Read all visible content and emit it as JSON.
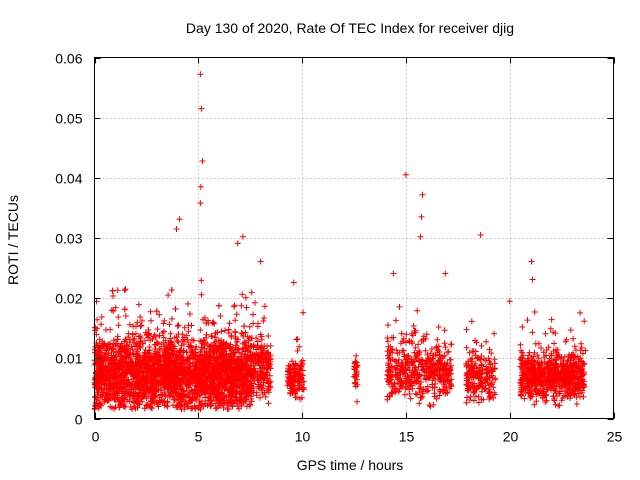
{
  "chart_data": {
    "type": "scatter",
    "title": "Day 130 of 2020, Rate Of TEC Index for receiver djig",
    "xlabel": "GPS time / hours",
    "ylabel": "ROTI / TECUs",
    "xlim": [
      0,
      25
    ],
    "ylim": [
      0,
      0.06
    ],
    "xticks": [
      0,
      5,
      10,
      15,
      20,
      25
    ],
    "yticks": [
      0,
      0.01,
      0.02,
      0.03,
      0.04,
      0.05,
      0.06
    ],
    "xtick_labels": [
      "0",
      "5",
      "10",
      "15",
      "20",
      "25"
    ],
    "ytick_labels": [
      "0",
      "0.01",
      "0.02",
      "0.03",
      "0.04",
      "0.05",
      "0.06"
    ],
    "grid": true,
    "marker": "+",
    "marker_color": "#ff0000",
    "notable_points": [
      {
        "x": 5.1,
        "y": 0.0572
      },
      {
        "x": 5.15,
        "y": 0.0515
      },
      {
        "x": 5.2,
        "y": 0.0428
      },
      {
        "x": 5.12,
        "y": 0.0385
      },
      {
        "x": 5.1,
        "y": 0.0358
      },
      {
        "x": 4.1,
        "y": 0.0331
      },
      {
        "x": 3.95,
        "y": 0.0315
      },
      {
        "x": 7.15,
        "y": 0.0302
      },
      {
        "x": 6.9,
        "y": 0.0291
      },
      {
        "x": 8.0,
        "y": 0.0261
      },
      {
        "x": 9.6,
        "y": 0.0226
      },
      {
        "x": 10.05,
        "y": 0.0176
      },
      {
        "x": 12.6,
        "y": 0.0104
      },
      {
        "x": 12.65,
        "y": 0.0028
      },
      {
        "x": 14.4,
        "y": 0.0241
      },
      {
        "x": 15.0,
        "y": 0.0405
      },
      {
        "x": 15.8,
        "y": 0.0372
      },
      {
        "x": 15.75,
        "y": 0.0335
      },
      {
        "x": 15.7,
        "y": 0.0302
      },
      {
        "x": 16.9,
        "y": 0.0241
      },
      {
        "x": 18.6,
        "y": 0.0305
      },
      {
        "x": 20.0,
        "y": 0.0195
      },
      {
        "x": 21.05,
        "y": 0.0261
      },
      {
        "x": 21.1,
        "y": 0.0231
      },
      {
        "x": 22.2,
        "y": 0.0142
      },
      {
        "x": 23.65,
        "y": 0.0113
      }
    ],
    "clusters": [
      {
        "x_range": [
          0.0,
          7.6
        ],
        "y_center": 0.0075,
        "y_spread": 0.0045,
        "y_min": 0.0015,
        "density": 45
      },
      {
        "x_range": [
          7.6,
          8.5
        ],
        "y_center": 0.0085,
        "y_spread": 0.0035,
        "y_min": 0.002,
        "density": 22
      },
      {
        "x_range": [
          9.3,
          10.1
        ],
        "y_center": 0.0068,
        "y_spread": 0.0025,
        "y_min": 0.002,
        "density": 18
      },
      {
        "x_range": [
          12.5,
          12.7
        ],
        "y_center": 0.0075,
        "y_spread": 0.0015,
        "y_min": 0.005,
        "density": 10
      },
      {
        "x_range": [
          14.1,
          17.2
        ],
        "y_center": 0.0078,
        "y_spread": 0.0035,
        "y_min": 0.002,
        "density": 16
      },
      {
        "x_range": [
          17.9,
          19.3
        ],
        "y_center": 0.0068,
        "y_spread": 0.003,
        "y_min": 0.002,
        "density": 16
      },
      {
        "x_range": [
          20.5,
          23.6
        ],
        "y_center": 0.0072,
        "y_spread": 0.003,
        "y_min": 0.002,
        "density": 26
      }
    ]
  }
}
